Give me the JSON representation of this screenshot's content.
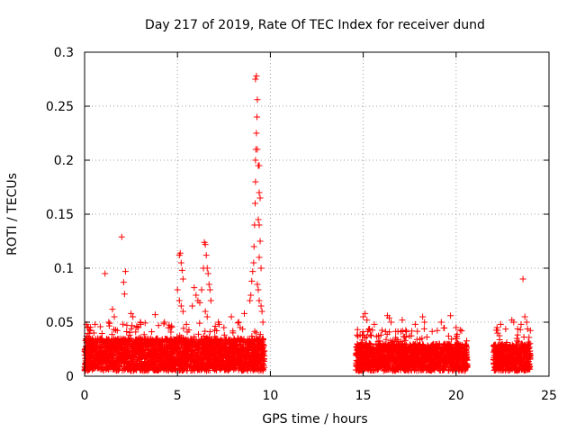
{
  "chart_data": {
    "type": "scatter",
    "title": "Day 217 of 2019, Rate Of TEC Index for receiver dund",
    "xlabel": "GPS time / hours",
    "ylabel": "ROTI / TECUs",
    "xlim": [
      0,
      25
    ],
    "ylim": [
      0,
      0.3
    ],
    "xticks": [
      0,
      5,
      10,
      15,
      20,
      25
    ],
    "yticks": [
      0,
      0.05,
      0.1,
      0.15,
      0.2,
      0.25,
      0.3
    ],
    "xtick_labels": [
      "0",
      "5",
      "10",
      "15",
      "20",
      "25"
    ],
    "ytick_labels": [
      "0",
      "0.05",
      "0.1",
      "0.15",
      "0.2",
      "0.25",
      "0.3"
    ],
    "grid": true,
    "marker": "+",
    "color": "#ff0000",
    "series": [
      {
        "name": "ROTI",
        "description": "dense baseline scatter estimated from figure, values mostly 0.005-0.04",
        "segments": [
          {
            "x_start": 0.0,
            "x_end": 9.7,
            "base_low": 0.005,
            "base_high": 0.035,
            "peak_high": 0.05
          },
          {
            "x_start": 14.6,
            "x_end": 20.6,
            "base_low": 0.005,
            "base_high": 0.03,
            "peak_high": 0.045
          },
          {
            "x_start": 22.0,
            "x_end": 24.0,
            "base_low": 0.005,
            "base_high": 0.03,
            "peak_high": 0.045
          }
        ],
        "points": [
          [
            0.1,
            0.048
          ],
          [
            0.2,
            0.045
          ],
          [
            0.3,
            0.042
          ],
          [
            0.5,
            0.04
          ],
          [
            1.1,
            0.095
          ],
          [
            1.3,
            0.05
          ],
          [
            1.5,
            0.062
          ],
          [
            1.6,
            0.055
          ],
          [
            2.0,
            0.129
          ],
          [
            2.1,
            0.087
          ],
          [
            2.2,
            0.097
          ],
          [
            2.15,
            0.076
          ],
          [
            2.5,
            0.058
          ],
          [
            2.6,
            0.055
          ],
          [
            3.0,
            0.05
          ],
          [
            3.8,
            0.057
          ],
          [
            4.3,
            0.05
          ],
          [
            4.6,
            0.045
          ],
          [
            5.0,
            0.08
          ],
          [
            5.1,
            0.112
          ],
          [
            5.15,
            0.114
          ],
          [
            5.2,
            0.105
          ],
          [
            5.25,
            0.098
          ],
          [
            5.3,
            0.09
          ],
          [
            5.1,
            0.07
          ],
          [
            5.2,
            0.065
          ],
          [
            5.3,
            0.06
          ],
          [
            5.8,
            0.065
          ],
          [
            5.9,
            0.082
          ],
          [
            6.0,
            0.075
          ],
          [
            6.1,
            0.07
          ],
          [
            6.2,
            0.068
          ],
          [
            6.3,
            0.08
          ],
          [
            6.4,
            0.1
          ],
          [
            6.45,
            0.124
          ],
          [
            6.5,
            0.122
          ],
          [
            6.55,
            0.112
          ],
          [
            6.6,
            0.1
          ],
          [
            6.65,
            0.095
          ],
          [
            6.7,
            0.085
          ],
          [
            6.75,
            0.08
          ],
          [
            6.8,
            0.07
          ],
          [
            6.5,
            0.06
          ],
          [
            6.6,
            0.055
          ],
          [
            7.2,
            0.05
          ],
          [
            7.5,
            0.045
          ],
          [
            7.9,
            0.055
          ],
          [
            8.3,
            0.05
          ],
          [
            8.6,
            0.058
          ],
          [
            8.9,
            0.07
          ],
          [
            8.95,
            0.075
          ],
          [
            9.0,
            0.088
          ],
          [
            9.05,
            0.097
          ],
          [
            9.1,
            0.105
          ],
          [
            9.12,
            0.12
          ],
          [
            9.15,
            0.14
          ],
          [
            9.18,
            0.16
          ],
          [
            9.2,
            0.18
          ],
          [
            9.2,
            0.2
          ],
          [
            9.22,
            0.21
          ],
          [
            9.25,
            0.225
          ],
          [
            9.28,
            0.24
          ],
          [
            9.3,
            0.256
          ],
          [
            9.2,
            0.275
          ],
          [
            9.25,
            0.278
          ],
          [
            9.3,
            0.21
          ],
          [
            9.35,
            0.195
          ],
          [
            9.4,
            0.195
          ],
          [
            9.4,
            0.17
          ],
          [
            9.45,
            0.165
          ],
          [
            9.35,
            0.145
          ],
          [
            9.4,
            0.14
          ],
          [
            9.45,
            0.125
          ],
          [
            9.4,
            0.11
          ],
          [
            9.5,
            0.1
          ],
          [
            9.3,
            0.085
          ],
          [
            9.35,
            0.08
          ],
          [
            9.4,
            0.07
          ],
          [
            9.5,
            0.065
          ],
          [
            9.55,
            0.06
          ],
          [
            9.6,
            0.05
          ],
          [
            15.0,
            0.055
          ],
          [
            15.1,
            0.058
          ],
          [
            15.2,
            0.052
          ],
          [
            15.6,
            0.048
          ],
          [
            16.3,
            0.056
          ],
          [
            16.4,
            0.054
          ],
          [
            16.5,
            0.05
          ],
          [
            17.1,
            0.052
          ],
          [
            17.8,
            0.048
          ],
          [
            18.2,
            0.055
          ],
          [
            18.3,
            0.05
          ],
          [
            19.2,
            0.05
          ],
          [
            19.7,
            0.056
          ],
          [
            20.0,
            0.045
          ],
          [
            20.3,
            0.042
          ],
          [
            22.2,
            0.045
          ],
          [
            22.4,
            0.048
          ],
          [
            23.0,
            0.052
          ],
          [
            23.1,
            0.05
          ],
          [
            23.5,
            0.048
          ],
          [
            23.6,
            0.09
          ],
          [
            23.7,
            0.055
          ],
          [
            23.8,
            0.05
          ]
        ]
      }
    ]
  }
}
